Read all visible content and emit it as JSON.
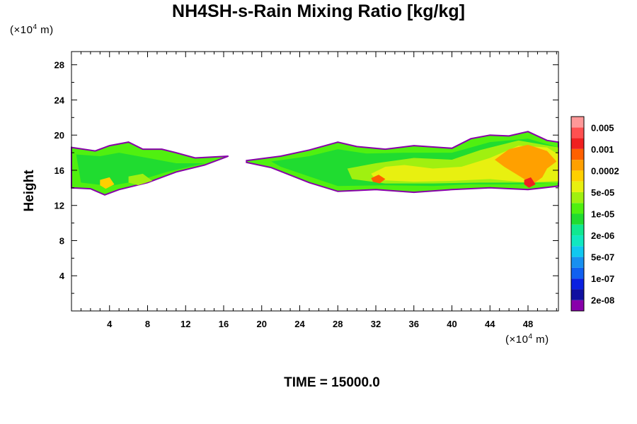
{
  "chart_data": {
    "type": "heatmap",
    "title": "NH4SH-s-Rain Mixing Ratio [kg/kg]",
    "ylabel": "Height",
    "xlabel": "",
    "x_unit_prefix": "(×10",
    "x_unit_exp": "4",
    "x_unit_suffix": " m)",
    "y_unit_prefix": "(×10",
    "y_unit_exp": "4",
    "y_unit_suffix": " m)",
    "xlim": [
      0,
      51.2
    ],
    "ylim": [
      0,
      29.5
    ],
    "xticks": [
      4,
      8,
      12,
      16,
      20,
      24,
      28,
      32,
      36,
      40,
      44,
      48
    ],
    "yticks": [
      4,
      8,
      12,
      16,
      20,
      24,
      28
    ],
    "footer": "TIME = 15000.0",
    "colorbar": {
      "colors": [
        "#8800aa",
        "#1010a0",
        "#0a20e0",
        "#1060f0",
        "#1890f0",
        "#10c8f0",
        "#10e8c0",
        "#10e890",
        "#20dc30",
        "#50f010",
        "#a0f010",
        "#e8f010",
        "#ffd000",
        "#ffa000",
        "#ff6000",
        "#f02020",
        "#ff5050",
        "#ff9898"
      ],
      "labels": [
        "2e-08",
        "1e-07",
        "5e-07",
        "2e-06",
        "1e-05",
        "5e-05",
        "0.0002",
        "0.001",
        "0.005"
      ]
    },
    "regions": [
      {
        "name": "left-band",
        "level": 9,
        "points": [
          [
            0,
            18.6
          ],
          [
            2.5,
            18.2
          ],
          [
            4,
            18.8
          ],
          [
            6,
            19.2
          ],
          [
            7.5,
            18.4
          ],
          [
            9.5,
            18.4
          ],
          [
            11,
            18.0
          ],
          [
            13,
            17.4
          ],
          [
            16.5,
            17.6
          ],
          [
            14,
            16.6
          ],
          [
            11,
            15.8
          ],
          [
            8,
            14.6
          ],
          [
            5,
            13.8
          ],
          [
            3.5,
            13.2
          ],
          [
            2,
            13.9
          ],
          [
            0,
            14.0
          ]
        ]
      },
      {
        "name": "left-inner",
        "level": 8,
        "points": [
          [
            0.5,
            17.8
          ],
          [
            3,
            17.6
          ],
          [
            5,
            18.0
          ],
          [
            7,
            17.6
          ],
          [
            9,
            17.2
          ],
          [
            11,
            16.8
          ],
          [
            14,
            16.8
          ],
          [
            10,
            15.8
          ],
          [
            7,
            14.8
          ],
          [
            4,
            14.2
          ],
          [
            1,
            14.6
          ]
        ]
      },
      {
        "name": "left-hot",
        "level": 12,
        "points": [
          [
            3,
            14.9
          ],
          [
            4,
            15.2
          ],
          [
            4.5,
            14.4
          ],
          [
            3.6,
            13.9
          ],
          [
            3,
            14.3
          ]
        ]
      },
      {
        "name": "left-green",
        "level": 10,
        "points": [
          [
            6,
            15.3
          ],
          [
            7.5,
            15.6
          ],
          [
            8.5,
            14.8
          ],
          [
            7,
            14.3
          ],
          [
            6,
            14.6
          ]
        ]
      },
      {
        "name": "right-band",
        "level": 9,
        "points": [
          [
            18.4,
            17.1
          ],
          [
            22,
            17.6
          ],
          [
            25,
            18.3
          ],
          [
            28,
            19.2
          ],
          [
            30,
            18.7
          ],
          [
            33,
            18.4
          ],
          [
            36,
            18.8
          ],
          [
            40,
            18.5
          ],
          [
            42,
            19.6
          ],
          [
            44,
            20.0
          ],
          [
            46,
            19.9
          ],
          [
            48,
            20.4
          ],
          [
            50,
            19.4
          ],
          [
            51.2,
            19.2
          ],
          [
            51.2,
            14.2
          ],
          [
            48,
            13.8
          ],
          [
            44,
            14.0
          ],
          [
            40,
            13.8
          ],
          [
            36,
            13.5
          ],
          [
            32,
            13.8
          ],
          [
            28,
            13.6
          ],
          [
            25,
            14.6
          ],
          [
            21,
            16.3
          ],
          [
            18.4,
            16.9
          ]
        ]
      },
      {
        "name": "right-inner",
        "level": 8,
        "points": [
          [
            21,
            17.0
          ],
          [
            25,
            17.6
          ],
          [
            28,
            18.4
          ],
          [
            31,
            17.9
          ],
          [
            35,
            18.0
          ],
          [
            40,
            18.0
          ],
          [
            44,
            19.2
          ],
          [
            48,
            19.6
          ],
          [
            51.2,
            18.6
          ],
          [
            51.2,
            14.6
          ],
          [
            47,
            14.4
          ],
          [
            42,
            14.4
          ],
          [
            38,
            14.2
          ],
          [
            33,
            14.3
          ],
          [
            28,
            14.2
          ],
          [
            25,
            15.3
          ],
          [
            22,
            16.4
          ]
        ]
      },
      {
        "name": "right-green",
        "level": 10,
        "points": [
          [
            29,
            16.2
          ],
          [
            32,
            16.8
          ],
          [
            36,
            17.4
          ],
          [
            40,
            17.2
          ],
          [
            43,
            18.3
          ],
          [
            47,
            19.4
          ],
          [
            51.2,
            18.6
          ],
          [
            51.2,
            14.6
          ],
          [
            47,
            14.6
          ],
          [
            43,
            14.6
          ],
          [
            38,
            14.5
          ],
          [
            33,
            14.5
          ],
          [
            29.5,
            15.0
          ]
        ]
      },
      {
        "name": "right-yellow",
        "level": 11,
        "points": [
          [
            31.5,
            15.6
          ],
          [
            33,
            16.4
          ],
          [
            35,
            16.6
          ],
          [
            38,
            16.2
          ],
          [
            41,
            16.4
          ],
          [
            44,
            17.4
          ],
          [
            47,
            18.8
          ],
          [
            50,
            18.6
          ],
          [
            51.2,
            17.8
          ],
          [
            51.2,
            14.8
          ],
          [
            48,
            14.6
          ],
          [
            44,
            15.0
          ],
          [
            40,
            14.8
          ],
          [
            36,
            14.7
          ],
          [
            32,
            14.9
          ]
        ]
      },
      {
        "name": "right-orange",
        "level": 13,
        "points": [
          [
            44.5,
            17.2
          ],
          [
            46,
            18.4
          ],
          [
            48,
            18.9
          ],
          [
            50,
            18.2
          ],
          [
            51,
            17.0
          ],
          [
            50,
            16.2
          ],
          [
            49.5,
            15.2
          ],
          [
            48.5,
            14.4
          ],
          [
            47,
            15.4
          ],
          [
            45.5,
            16.4
          ]
        ]
      },
      {
        "name": "right-hot-a",
        "level": 15,
        "points": [
          [
            47.6,
            14.9
          ],
          [
            48.3,
            15.2
          ],
          [
            48.8,
            14.4
          ],
          [
            48.1,
            14.0
          ],
          [
            47.6,
            14.4
          ]
        ]
      },
      {
        "name": "right-hot-b",
        "level": 14,
        "points": [
          [
            31.5,
            15.1
          ],
          [
            32.3,
            15.5
          ],
          [
            33,
            15.0
          ],
          [
            32.4,
            14.5
          ],
          [
            31.7,
            14.7
          ]
        ]
      }
    ]
  }
}
